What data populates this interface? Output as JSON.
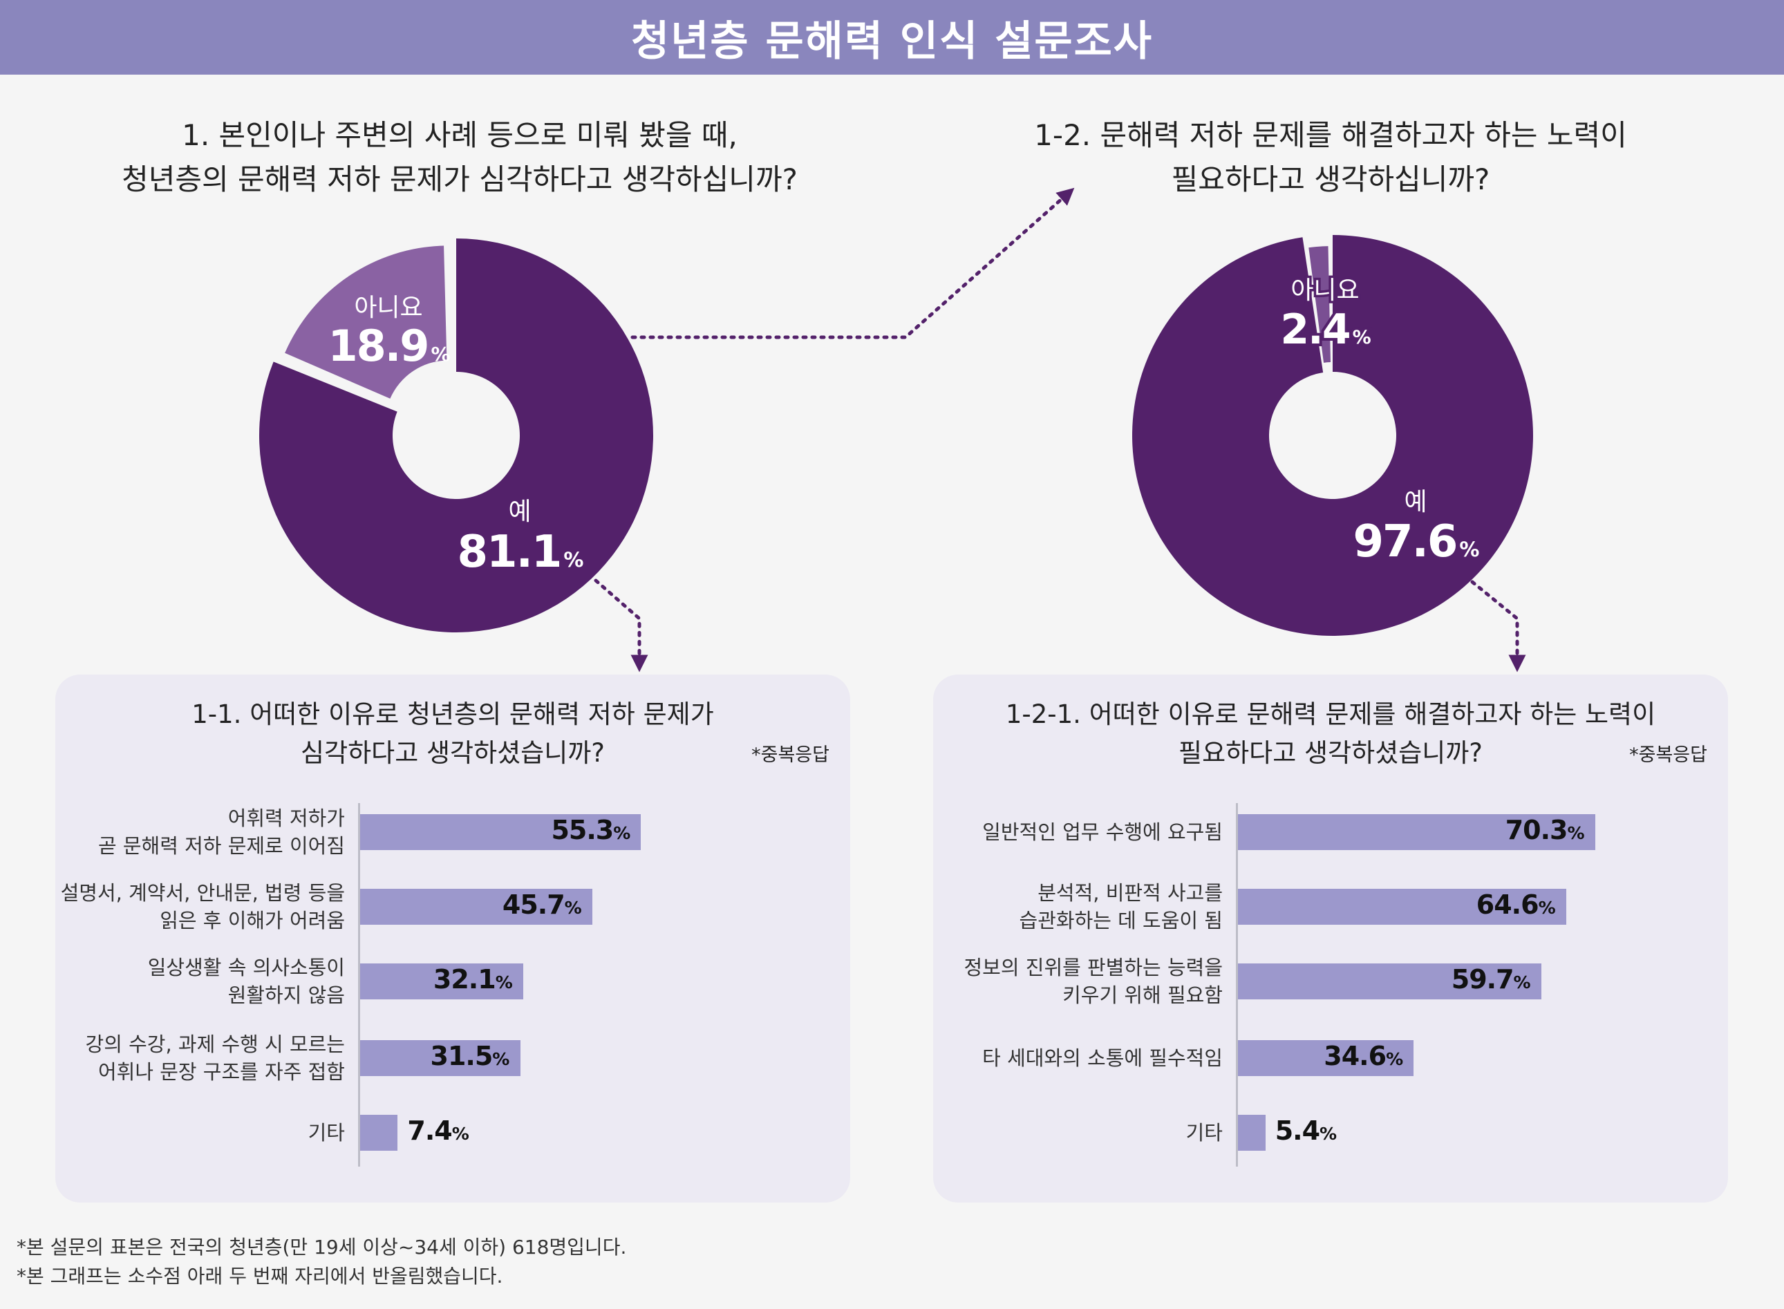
{
  "title": "청년층 문해력 인식 설문조사",
  "q1": {
    "lines": [
      "1. 본인이나 주변의 사례 등으로 미뤄 봤을 때,",
      "청년층의 문해력 저하 문제가 심각하다고 생각하십니까?"
    ]
  },
  "q2": {
    "lines": [
      "1-2. 문해력 저하 문제를 해결하고자 하는 노력이",
      "필요하다고 생각하십니까?"
    ]
  },
  "colors": {
    "yes": "#53216a",
    "no_left": "#8a62a3",
    "no_right": "#7a4f93",
    "bar": "#9c98cc",
    "title_bar": "#8a86bd",
    "arrow": "#53216a"
  },
  "chart_data": [
    {
      "type": "pie",
      "id": "donut1",
      "slices": [
        {
          "label": "예",
          "value": 81.1,
          "text": "81.1"
        },
        {
          "label": "아니요",
          "value": 18.9,
          "text": "18.9"
        }
      ],
      "unit": "%"
    },
    {
      "type": "pie",
      "id": "donut2",
      "slices": [
        {
          "label": "예",
          "value": 97.6,
          "text": "97.6"
        },
        {
          "label": "아니요",
          "value": 2.4,
          "text": "2.4"
        }
      ],
      "unit": "%"
    },
    {
      "type": "bar",
      "id": "bars1",
      "title_lines": [
        "1-1. 어떠한 이유로 청년층의 문해력 저하 문제가",
        "심각하다고 생각하셨습니까?"
      ],
      "note": "*중복응답",
      "categories": [
        [
          "어휘력 저하가",
          "곧 문해력 저하 문제로 이어짐"
        ],
        [
          "설명서, 계약서, 안내문, 법령 등을",
          "읽은 후 이해가 어려움"
        ],
        [
          "일상생활 속 의사소통이",
          "원활하지 않음"
        ],
        [
          "강의 수강, 과제 수행 시 모르는",
          "어휘나 문장 구조를 자주 접함"
        ],
        [
          "기타"
        ]
      ],
      "values": [
        55.3,
        45.7,
        32.1,
        31.5,
        7.4
      ],
      "value_text": [
        "55.3",
        "45.7",
        "32.1",
        "31.5",
        "7.4"
      ],
      "unit": "%"
    },
    {
      "type": "bar",
      "id": "bars2",
      "title_lines": [
        "1-2-1. 어떠한 이유로 문해력 문제를 해결하고자 하는 노력이",
        "필요하다고 생각하셨습니까?"
      ],
      "note": "*중복응답",
      "categories": [
        [
          "일반적인 업무 수행에 요구됨"
        ],
        [
          "분석적, 비판적 사고를",
          "습관화하는 데 도움이 됨"
        ],
        [
          "정보의 진위를 판별하는 능력을",
          "키우기 위해 필요함"
        ],
        [
          "타 세대와의 소통에 필수적임"
        ],
        [
          "기타"
        ]
      ],
      "values": [
        70.3,
        64.6,
        59.7,
        34.6,
        5.4
      ],
      "value_text": [
        "70.3",
        "64.6",
        "59.7",
        "34.6",
        "5.4"
      ],
      "unit": "%"
    }
  ],
  "footnotes": [
    "*본 설문의 표본은 전국의 청년층(만 19세 이상~34세 이하) 618명입니다.",
    "*본 그래프는 소수점 아래 두 번째 자리에서 반올림했습니다."
  ]
}
